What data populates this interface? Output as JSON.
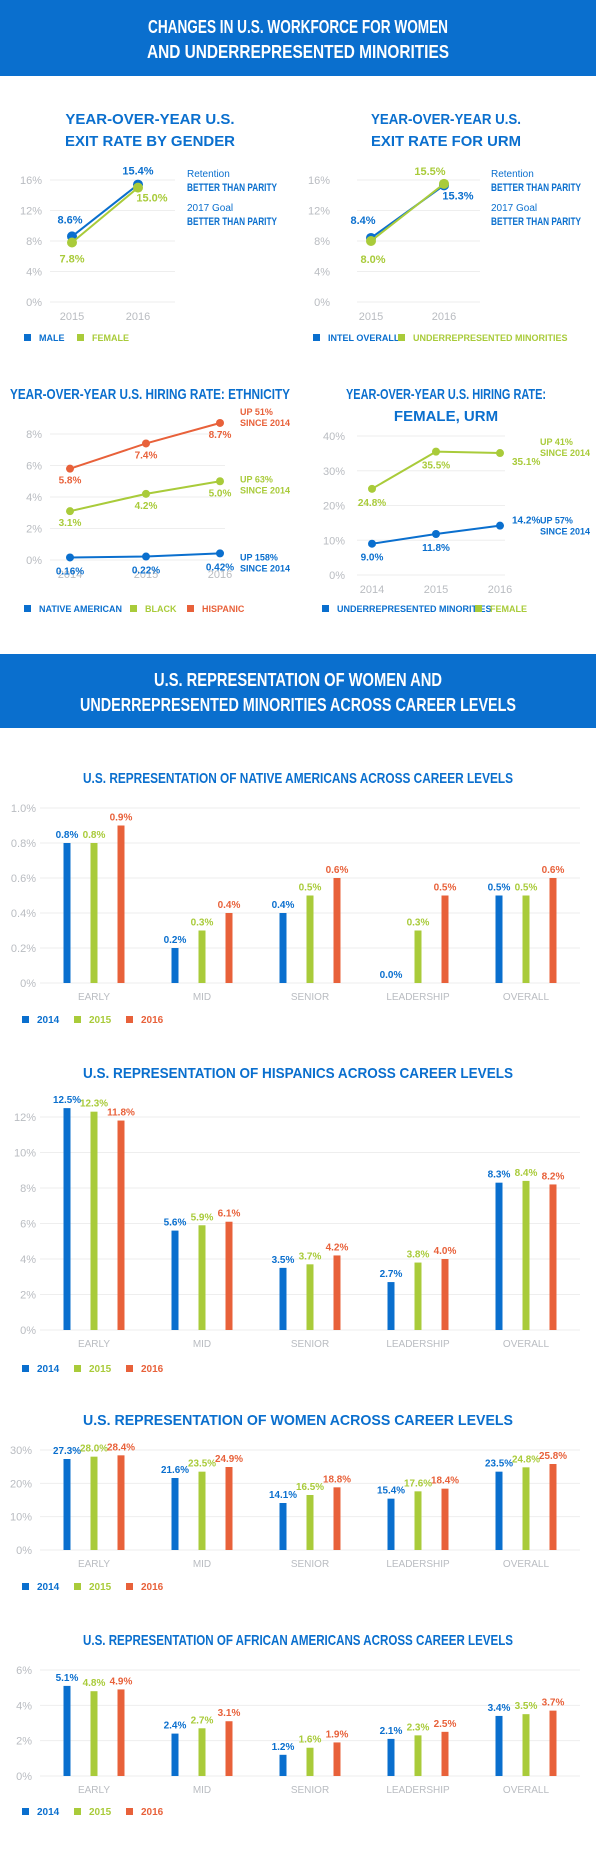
{
  "colors": {
    "band": "#0a6fce",
    "title": "#0a6fce",
    "blue": "#0a6fce",
    "green": "#a9cb3a",
    "orange": "#e8613a",
    "axis": "#b9bcc1",
    "grid": "#eeeeee"
  },
  "header1": {
    "line1": "CHANGES IN U.S. WORKFORCE FOR WOMEN",
    "line2": "AND UNDERREPRESENTED MINORITIES"
  },
  "header2": {
    "line1": "U.S. REPRESENTATION OF WOMEN AND",
    "line2": "UNDERREPRESENTED MINORITIES ACROSS CAREER LEVELS"
  },
  "chart_data": [
    {
      "id": "exit-gender",
      "type": "line",
      "title": [
        "YEAR-OVER-YEAR U.S.",
        "EXIT RATE BY GENDER"
      ],
      "x": [
        "2015",
        "2016"
      ],
      "ylim": [
        0,
        16
      ],
      "yticks": [
        0,
        4,
        8,
        12,
        16
      ],
      "ytick_labels": [
        "0%",
        "4%",
        "8%",
        "12%",
        "16%"
      ],
      "series": [
        {
          "name": "MALE",
          "color": "blue",
          "values": [
            8.6,
            15.4
          ],
          "labels": [
            "8.6%",
            "15.4%"
          ]
        },
        {
          "name": "FEMALE",
          "color": "green",
          "values": [
            7.8,
            15.0
          ],
          "labels": [
            "7.8%",
            "15.0%"
          ]
        }
      ],
      "notes": [
        {
          "label": "Retention",
          "value": "BETTER THAN PARITY"
        },
        {
          "label": "2017 Goal",
          "value": "BETTER THAN PARITY"
        }
      ]
    },
    {
      "id": "exit-urm",
      "type": "line",
      "title": [
        "YEAR-OVER-YEAR U.S.",
        "EXIT RATE FOR URM"
      ],
      "x": [
        "2015",
        "2016"
      ],
      "ylim": [
        0,
        16
      ],
      "yticks": [
        0,
        4,
        8,
        12,
        16
      ],
      "ytick_labels": [
        "0%",
        "4%",
        "8%",
        "12%",
        "16%"
      ],
      "series": [
        {
          "name": "INTEL OVERALL",
          "color": "blue",
          "values": [
            8.4,
            15.3
          ],
          "labels": [
            "8.4%",
            "15.3%"
          ]
        },
        {
          "name": "UNDERREPRESENTED MINORITIES",
          "color": "green",
          "values": [
            8.0,
            15.5
          ],
          "labels": [
            "8.0%",
            "15.5%"
          ]
        }
      ],
      "notes": [
        {
          "label": "Retention",
          "value": "BETTER THAN PARITY"
        },
        {
          "label": "2017 Goal",
          "value": "BETTER THAN PARITY"
        }
      ]
    },
    {
      "id": "hire-ethnicity",
      "type": "line",
      "title": [
        "YEAR-OVER-YEAR U.S. HIRING RATE: ETHNICITY"
      ],
      "x": [
        "2014",
        "2015",
        "2016"
      ],
      "ylim": [
        0,
        8
      ],
      "yticks": [
        0,
        2,
        4,
        6,
        8
      ],
      "ytick_labels": [
        "0%",
        "2%",
        "4%",
        "6%",
        "8%"
      ],
      "series": [
        {
          "name": "NATIVE AMERICAN",
          "color": "blue",
          "values": [
            0.16,
            0.22,
            0.42
          ],
          "labels": [
            "0.16%",
            "0.22%",
            "0.42%"
          ],
          "end_note": [
            "UP 158%",
            "SINCE 2014"
          ]
        },
        {
          "name": "BLACK",
          "color": "green",
          "values": [
            3.1,
            4.2,
            5.0
          ],
          "labels": [
            "3.1%",
            "4.2%",
            "5.0%"
          ],
          "end_note": [
            "UP 63%",
            "SINCE 2014"
          ]
        },
        {
          "name": "HISPANIC",
          "color": "orange",
          "values": [
            5.8,
            7.4,
            8.7
          ],
          "labels": [
            "5.8%",
            "7.4%",
            "8.7%"
          ],
          "end_note": [
            "UP 51%",
            "SINCE 2014"
          ]
        }
      ]
    },
    {
      "id": "hire-female-urm",
      "type": "line",
      "title": [
        "YEAR-OVER-YEAR U.S. HIRING RATE:",
        "FEMALE, URM"
      ],
      "x": [
        "2014",
        "2015",
        "2016"
      ],
      "ylim": [
        0,
        40
      ],
      "yticks": [
        0,
        10,
        20,
        30,
        40
      ],
      "ytick_labels": [
        "0%",
        "10%",
        "20%",
        "30%",
        "40%"
      ],
      "series": [
        {
          "name": "UNDERREPRESENTED MINORITIES",
          "color": "blue",
          "values": [
            9.0,
            11.8,
            14.2
          ],
          "labels": [
            "9.0%",
            "11.8%",
            "14.2%"
          ],
          "end_note": [
            "UP 57%",
            "SINCE 2014"
          ]
        },
        {
          "name": "FEMALE",
          "color": "green",
          "values": [
            24.8,
            35.5,
            35.1
          ],
          "labels": [
            "24.8%",
            "35.5%",
            "35.1%"
          ],
          "end_note": [
            "UP 41%",
            "SINCE 2014"
          ]
        }
      ]
    },
    {
      "id": "rep-native",
      "type": "bar",
      "title": [
        "U.S. REPRESENTATION OF NATIVE AMERICANS ACROSS CAREER LEVELS"
      ],
      "categories": [
        "EARLY",
        "MID",
        "SENIOR",
        "LEADERSHIP",
        "OVERALL"
      ],
      "ylim": [
        0,
        1.0
      ],
      "yticks": [
        0,
        0.2,
        0.4,
        0.6,
        0.8,
        1.0
      ],
      "ytick_labels": [
        "0%",
        "0.2%",
        "0.4%",
        "0.6%",
        "0.8%",
        "1.0%"
      ],
      "series": [
        {
          "name": "2014",
          "color": "blue",
          "values": [
            0.8,
            0.2,
            0.4,
            0.0,
            0.5
          ],
          "labels": [
            "0.8%",
            "0.2%",
            "0.4%",
            "0.0%",
            "0.5%"
          ]
        },
        {
          "name": "2015",
          "color": "green",
          "values": [
            0.8,
            0.3,
            0.5,
            0.3,
            0.5
          ],
          "labels": [
            "0.8%",
            "0.3%",
            "0.5%",
            "0.3%",
            "0.5%"
          ]
        },
        {
          "name": "2016",
          "color": "orange",
          "values": [
            0.9,
            0.4,
            0.6,
            0.5,
            0.6
          ],
          "labels": [
            "0.9%",
            "0.4%",
            "0.6%",
            "0.5%",
            "0.6%"
          ]
        }
      ]
    },
    {
      "id": "rep-hispanic",
      "type": "bar",
      "title": [
        "U.S. REPRESENTATION OF HISPANICS ACROSS CAREER LEVELS"
      ],
      "categories": [
        "EARLY",
        "MID",
        "SENIOR",
        "LEADERSHIP",
        "OVERALL"
      ],
      "ylim": [
        0,
        12
      ],
      "yticks": [
        0,
        2,
        4,
        6,
        8,
        10,
        12
      ],
      "ytick_labels": [
        "0%",
        "2%",
        "4%",
        "6%",
        "8%",
        "10%",
        "12%"
      ],
      "series": [
        {
          "name": "2014",
          "color": "blue",
          "values": [
            12.5,
            5.6,
            3.5,
            2.7,
            8.3
          ],
          "labels": [
            "12.5%",
            "5.6%",
            "3.5%",
            "2.7%",
            "8.3%"
          ]
        },
        {
          "name": "2015",
          "color": "green",
          "values": [
            12.3,
            5.9,
            3.7,
            3.8,
            8.4
          ],
          "labels": [
            "12.3%",
            "5.9%",
            "3.7%",
            "3.8%",
            "8.4%"
          ]
        },
        {
          "name": "2016",
          "color": "orange",
          "values": [
            11.8,
            6.1,
            4.2,
            4.0,
            8.2
          ],
          "labels": [
            "11.8%",
            "6.1%",
            "4.2%",
            "4.0%",
            "8.2%"
          ]
        }
      ]
    },
    {
      "id": "rep-women",
      "type": "bar",
      "title": [
        "U.S. REPRESENTATION OF WOMEN ACROSS CAREER LEVELS"
      ],
      "categories": [
        "EARLY",
        "MID",
        "SENIOR",
        "LEADERSHIP",
        "OVERALL"
      ],
      "ylim": [
        0,
        30
      ],
      "yticks": [
        0,
        10,
        20,
        30
      ],
      "ytick_labels": [
        "0%",
        "10%",
        "20%",
        "30%"
      ],
      "series": [
        {
          "name": "2014",
          "color": "blue",
          "values": [
            27.3,
            21.6,
            14.1,
            15.4,
            23.5
          ],
          "labels": [
            "27.3%",
            "21.6%",
            "14.1%",
            "15.4%",
            "23.5%"
          ]
        },
        {
          "name": "2015",
          "color": "green",
          "values": [
            28.0,
            23.5,
            16.5,
            17.6,
            24.8
          ],
          "labels": [
            "28.0%",
            "23.5%",
            "16.5%",
            "17.6%",
            "24.8%"
          ]
        },
        {
          "name": "2016",
          "color": "orange",
          "values": [
            28.4,
            24.9,
            18.8,
            18.4,
            25.8
          ],
          "labels": [
            "28.4%",
            "24.9%",
            "18.8%",
            "18.4%",
            "25.8%"
          ]
        }
      ]
    },
    {
      "id": "rep-african",
      "type": "bar",
      "title": [
        "U.S. REPRESENTATION OF AFRICAN AMERICANS ACROSS CAREER LEVELS"
      ],
      "categories": [
        "EARLY",
        "MID",
        "SENIOR",
        "LEADERSHIP",
        "OVERALL"
      ],
      "ylim": [
        0,
        6
      ],
      "yticks": [
        0,
        2,
        4,
        6
      ],
      "ytick_labels": [
        "0%",
        "2%",
        "4%",
        "6%"
      ],
      "series": [
        {
          "name": "2014",
          "color": "blue",
          "values": [
            5.1,
            2.4,
            1.2,
            2.1,
            3.4
          ],
          "labels": [
            "5.1%",
            "2.4%",
            "1.2%",
            "2.1%",
            "3.4%"
          ]
        },
        {
          "name": "2015",
          "color": "green",
          "values": [
            4.8,
            2.7,
            1.6,
            2.3,
            3.5
          ],
          "labels": [
            "4.8%",
            "2.7%",
            "1.6%",
            "2.3%",
            "3.5%"
          ]
        },
        {
          "name": "2016",
          "color": "orange",
          "values": [
            4.9,
            3.1,
            1.9,
            2.5,
            3.7
          ],
          "labels": [
            "4.9%",
            "3.1%",
            "1.9%",
            "2.5%",
            "3.7%"
          ]
        }
      ]
    }
  ]
}
